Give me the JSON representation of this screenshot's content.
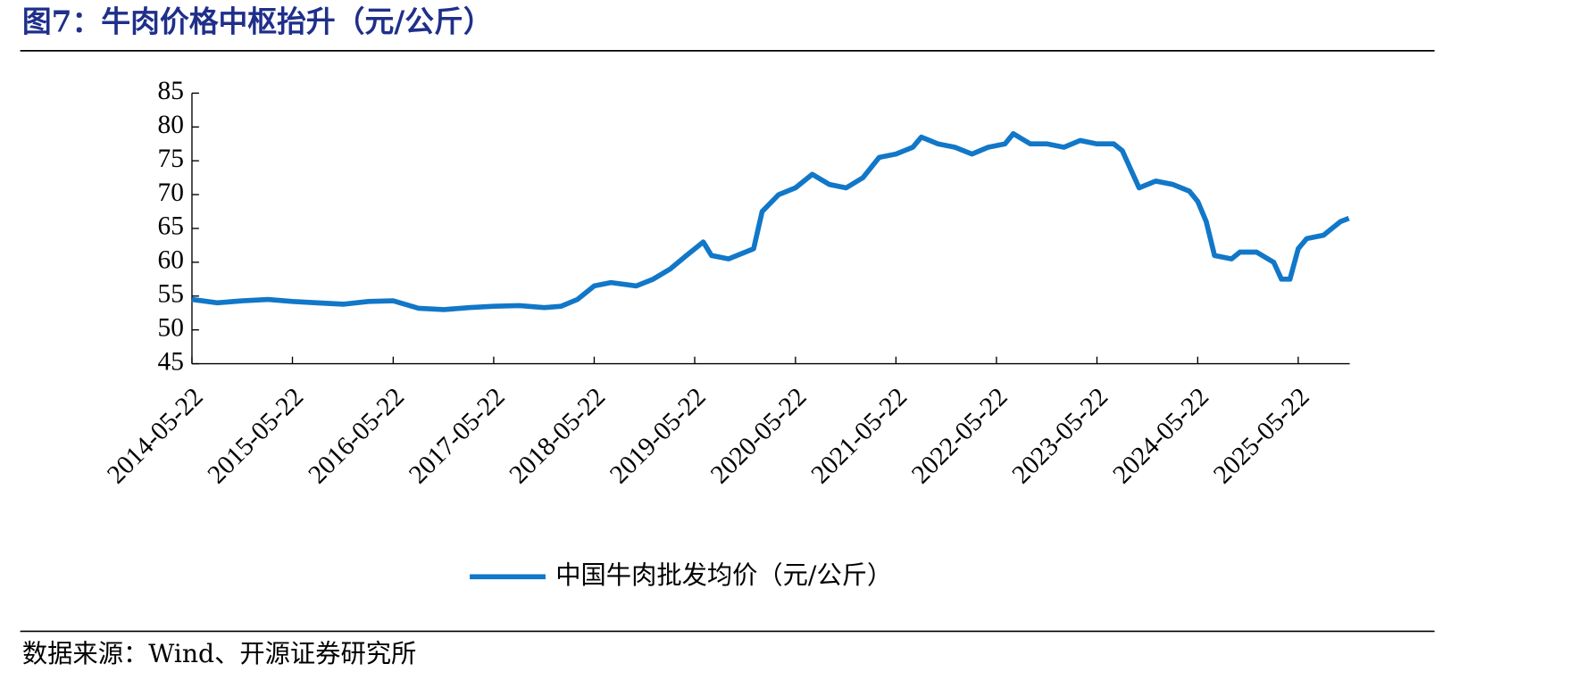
{
  "chart_data": {
    "type": "line",
    "title": "图7：牛肉价格中枢抬升（元/公斤）",
    "source": "数据来源：Wind、开源证券研究所",
    "x": [
      "2014-05-22",
      "2014-08-22",
      "2014-11-22",
      "2015-02-22",
      "2015-05-22",
      "2015-08-22",
      "2015-11-22",
      "2016-02-22",
      "2016-05-22",
      "2016-08-22",
      "2016-11-22",
      "2017-02-22",
      "2017-05-22",
      "2017-08-22",
      "2017-11-22",
      "2018-01-22",
      "2018-03-22",
      "2018-05-22",
      "2018-07-22",
      "2018-10-22",
      "2018-12-22",
      "2019-02-22",
      "2019-04-22",
      "2019-06-22",
      "2019-07-22",
      "2019-09-22",
      "2019-11-22",
      "2019-12-22",
      "2020-01-22",
      "2020-03-22",
      "2020-05-22",
      "2020-07-22",
      "2020-09-22",
      "2020-11-22",
      "2021-01-22",
      "2021-03-22",
      "2021-05-22",
      "2021-07-22",
      "2021-08-22",
      "2021-10-22",
      "2021-12-22",
      "2022-02-22",
      "2022-04-22",
      "2022-06-22",
      "2022-07-22",
      "2022-09-22",
      "2022-11-22",
      "2023-01-22",
      "2023-03-22",
      "2023-05-22",
      "2023-07-22",
      "2023-08-22",
      "2023-10-22",
      "2023-12-22",
      "2024-02-22",
      "2024-04-22",
      "2024-05-22",
      "2024-06-22",
      "2024-07-22",
      "2024-09-22",
      "2024-10-22",
      "2024-12-22",
      "2025-02-22",
      "2025-03-22",
      "2025-04-22",
      "2025-05-22",
      "2025-06-22",
      "2025-08-22",
      "2025-10-22",
      "2025-11-22"
    ],
    "series": [
      {
        "name": "中国牛肉批发均价（元/公斤）",
        "color": "#1177c8",
        "values": [
          54.5,
          54,
          54.3,
          54.5,
          54.2,
          54,
          53.8,
          54.2,
          54.3,
          53.2,
          53,
          53.3,
          53.5,
          53.6,
          53.3,
          53.5,
          54.5,
          56.5,
          57,
          56.5,
          57.5,
          59,
          61,
          63,
          61,
          60.5,
          61.5,
          62,
          67.5,
          70,
          71,
          73,
          71.5,
          71,
          72.5,
          75.5,
          76,
          77,
          78.5,
          77.5,
          77,
          76,
          77,
          77.5,
          79,
          77.5,
          77.5,
          77,
          78,
          77.5,
          77.5,
          76.5,
          71,
          72,
          71.5,
          70.5,
          69,
          66,
          61,
          60.5,
          61.5,
          61.5,
          60,
          57.5,
          57.5,
          62,
          63.5,
          64,
          66,
          66.5
        ]
      }
    ],
    "xlim": [
      "2014-05-22",
      "2025-11-25"
    ],
    "xticks": [
      "2014-05-22",
      "2015-05-22",
      "2016-05-22",
      "2017-05-22",
      "2018-05-22",
      "2019-05-22",
      "2020-05-22",
      "2021-05-22",
      "2022-05-22",
      "2023-05-22",
      "2024-05-22",
      "2025-05-22"
    ],
    "ylim": [
      45,
      85
    ],
    "yticks": [
      45,
      50,
      55,
      60,
      65,
      70,
      75,
      80,
      85
    ]
  }
}
